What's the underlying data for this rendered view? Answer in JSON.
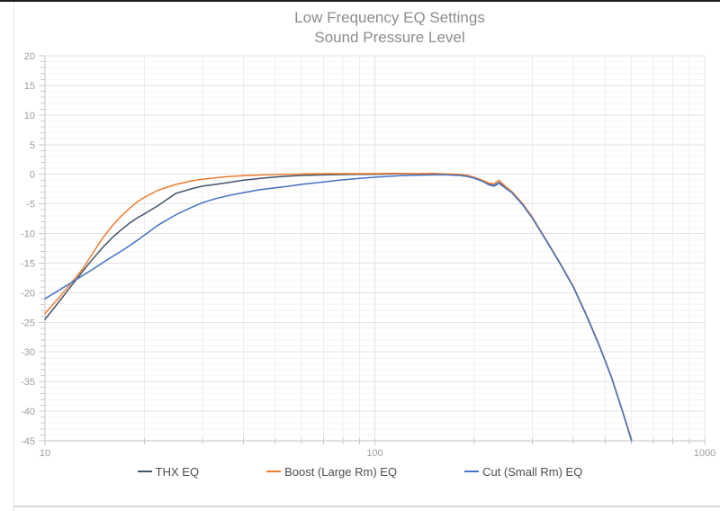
{
  "title": "Low Frequency EQ Settings",
  "subtitle": "Sound Pressure Level",
  "chart_data": {
    "type": "line",
    "title": "Low Frequency EQ Settings",
    "subtitle": "Sound Pressure Level",
    "grid": true,
    "legend_position": "bottom",
    "x_axis": {
      "scale": "log",
      "min": 10,
      "max": 1000,
      "ticks": [
        10,
        100,
        1000
      ],
      "tick_labels": [
        "10",
        "100",
        "1000"
      ],
      "minor_ticks": [
        20,
        30,
        40,
        50,
        60,
        70,
        80,
        90,
        200,
        300,
        400,
        500,
        600,
        700,
        800,
        900
      ],
      "major_gridlines": [
        100,
        1000
      ]
    },
    "y_axis": {
      "min": -45,
      "max": 20,
      "major_step": 5,
      "minor_step": 1,
      "tick_labels": [
        "20",
        "15",
        "10",
        "5",
        "0",
        "-5",
        "-10",
        "-15",
        "-20",
        "-25",
        "-30",
        "-35",
        "-40",
        "-45"
      ]
    },
    "series": [
      {
        "name": "THX EQ",
        "color": "#44546a",
        "points": [
          [
            10,
            -24.5
          ],
          [
            11,
            -21.6
          ],
          [
            12,
            -18.9
          ],
          [
            13,
            -16.4
          ],
          [
            14,
            -14.2
          ],
          [
            15,
            -12.3
          ],
          [
            16,
            -10.7
          ],
          [
            17,
            -9.4
          ],
          [
            18,
            -8.3
          ],
          [
            19,
            -7.4
          ],
          [
            20,
            -6.7
          ],
          [
            22,
            -5.3
          ],
          [
            25,
            -3.2
          ],
          [
            28,
            -2.4
          ],
          [
            30,
            -2.0
          ],
          [
            33,
            -1.7
          ],
          [
            36,
            -1.4
          ],
          [
            40,
            -1.0
          ],
          [
            45,
            -0.7
          ],
          [
            50,
            -0.45
          ],
          [
            55,
            -0.3
          ],
          [
            60,
            -0.2
          ],
          [
            70,
            -0.1
          ],
          [
            80,
            -0.05
          ],
          [
            90,
            0
          ],
          [
            100,
            0
          ],
          [
            110,
            0.05
          ],
          [
            120,
            0.1
          ],
          [
            135,
            0.05
          ],
          [
            150,
            0.1
          ],
          [
            165,
            0
          ],
          [
            180,
            -0.1
          ],
          [
            190,
            -0.25
          ],
          [
            200,
            -0.6
          ],
          [
            212,
            -1.1
          ],
          [
            222,
            -1.7
          ],
          [
            230,
            -1.9
          ],
          [
            238,
            -1.4
          ],
          [
            248,
            -2.2
          ],
          [
            260,
            -3.0
          ],
          [
            280,
            -5.0
          ],
          [
            300,
            -7.3
          ],
          [
            330,
            -11.0
          ],
          [
            360,
            -14.5
          ],
          [
            400,
            -19.0
          ],
          [
            440,
            -24.0
          ],
          [
            480,
            -29.0
          ],
          [
            520,
            -34.0
          ],
          [
            560,
            -39.5
          ],
          [
            600,
            -44.8
          ]
        ]
      },
      {
        "name": "Boost (Large Rm) EQ",
        "color": "#ed7d31",
        "points": [
          [
            10,
            -23.5
          ],
          [
            11,
            -20.9
          ],
          [
            12,
            -18.4
          ],
          [
            13,
            -16.0
          ],
          [
            14,
            -13.2
          ],
          [
            15,
            -10.7
          ],
          [
            16,
            -8.7
          ],
          [
            17,
            -7.1
          ],
          [
            18,
            -5.8
          ],
          [
            19,
            -4.7
          ],
          [
            20,
            -3.9
          ],
          [
            22,
            -2.7
          ],
          [
            25,
            -1.7
          ],
          [
            28,
            -1.1
          ],
          [
            30,
            -0.85
          ],
          [
            33,
            -0.6
          ],
          [
            36,
            -0.4
          ],
          [
            40,
            -0.25
          ],
          [
            45,
            -0.12
          ],
          [
            50,
            -0.05
          ],
          [
            55,
            0
          ],
          [
            60,
            0.05
          ],
          [
            70,
            0.1
          ],
          [
            80,
            0.1
          ],
          [
            90,
            0.1
          ],
          [
            100,
            0.1
          ],
          [
            110,
            0.15
          ],
          [
            120,
            0.15
          ],
          [
            135,
            0.1
          ],
          [
            150,
            0.15
          ],
          [
            165,
            0.05
          ],
          [
            180,
            0
          ],
          [
            190,
            -0.15
          ],
          [
            200,
            -0.5
          ],
          [
            212,
            -1.0
          ],
          [
            222,
            -1.5
          ],
          [
            230,
            -1.6
          ],
          [
            238,
            -1.0
          ],
          [
            248,
            -2.0
          ],
          [
            260,
            -2.9
          ],
          [
            280,
            -4.9
          ],
          [
            300,
            -7.2
          ],
          [
            330,
            -11.0
          ],
          [
            360,
            -14.5
          ],
          [
            400,
            -19.0
          ],
          [
            440,
            -24.0
          ],
          [
            480,
            -29.0
          ],
          [
            520,
            -34.0
          ],
          [
            560,
            -39.5
          ],
          [
            600,
            -44.8
          ]
        ]
      },
      {
        "name": "Cut (Small Rm) EQ",
        "color": "#4472c4",
        "points": [
          [
            10,
            -21.0
          ],
          [
            11,
            -19.6
          ],
          [
            12,
            -18.3
          ],
          [
            13,
            -17.1
          ],
          [
            14,
            -16.0
          ],
          [
            15,
            -14.9
          ],
          [
            16,
            -13.9
          ],
          [
            17,
            -13.0
          ],
          [
            18,
            -12.1
          ],
          [
            19,
            -11.2
          ],
          [
            20,
            -10.3
          ],
          [
            22,
            -8.6
          ],
          [
            25,
            -6.8
          ],
          [
            28,
            -5.5
          ],
          [
            30,
            -4.8
          ],
          [
            33,
            -4.1
          ],
          [
            36,
            -3.6
          ],
          [
            40,
            -3.1
          ],
          [
            45,
            -2.6
          ],
          [
            50,
            -2.3
          ],
          [
            55,
            -2.0
          ],
          [
            60,
            -1.7
          ],
          [
            70,
            -1.3
          ],
          [
            80,
            -0.95
          ],
          [
            90,
            -0.7
          ],
          [
            100,
            -0.5
          ],
          [
            110,
            -0.35
          ],
          [
            120,
            -0.25
          ],
          [
            135,
            -0.15
          ],
          [
            150,
            -0.1
          ],
          [
            165,
            -0.1
          ],
          [
            180,
            -0.2
          ],
          [
            190,
            -0.35
          ],
          [
            200,
            -0.65
          ],
          [
            212,
            -1.2
          ],
          [
            222,
            -1.8
          ],
          [
            230,
            -2.0
          ],
          [
            238,
            -1.5
          ],
          [
            248,
            -2.3
          ],
          [
            260,
            -3.1
          ],
          [
            280,
            -5.1
          ],
          [
            300,
            -7.4
          ],
          [
            330,
            -11.1
          ],
          [
            360,
            -14.6
          ],
          [
            400,
            -19.1
          ],
          [
            440,
            -24.1
          ],
          [
            480,
            -29.1
          ],
          [
            520,
            -34.1
          ],
          [
            560,
            -39.6
          ],
          [
            600,
            -45.0
          ]
        ]
      }
    ]
  }
}
